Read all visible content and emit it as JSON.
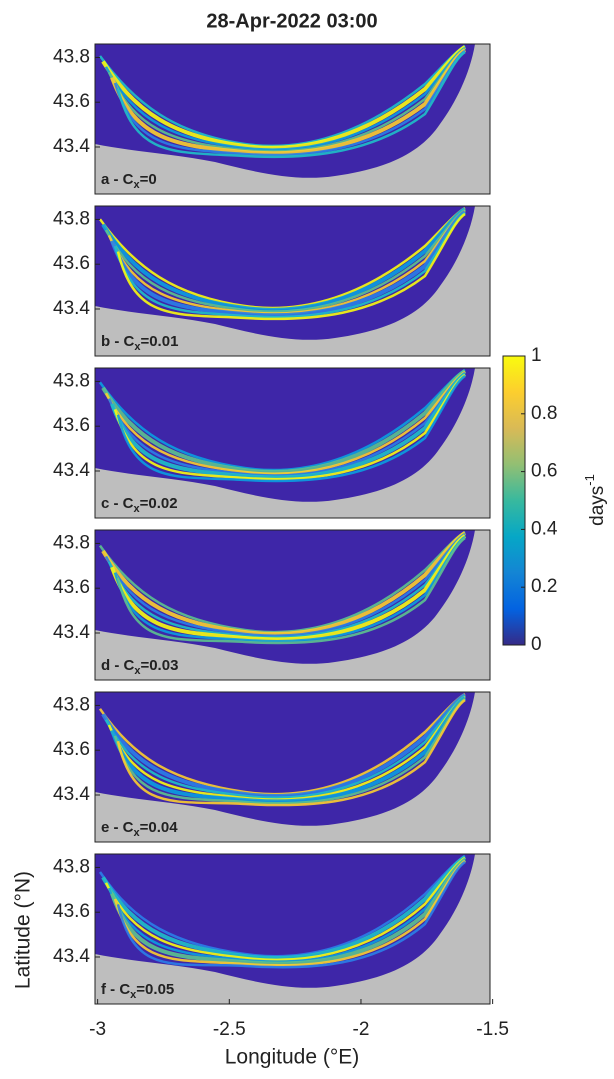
{
  "chart_data": {
    "type": "map-panels",
    "title": "28-Apr-2022 03:00",
    "x_label": "Longitude (°E)",
    "y_label": "Latitude (°N)",
    "xlim": [
      -3.01,
      -1.51
    ],
    "xticks": [
      -3,
      -2.5,
      -2,
      -1.5
    ],
    "ylim": [
      43.19,
      43.86
    ],
    "yticks": [
      43.4,
      43.6,
      43.8
    ],
    "panels": [
      {
        "label": "a - C",
        "sub": "x",
        "suffix": "=0"
      },
      {
        "label": "b - C",
        "sub": "x",
        "suffix": "=0.01"
      },
      {
        "label": "c - C",
        "sub": "x",
        "suffix": "=0.02"
      },
      {
        "label": "d - C",
        "sub": "x",
        "suffix": "=0.03"
      },
      {
        "label": "e - C",
        "sub": "x",
        "suffix": "=0.04"
      },
      {
        "label": "f - C",
        "sub": "x",
        "suffix": "=0.05"
      }
    ],
    "colorbar": {
      "label": "days",
      "label_sup": "-1",
      "lim": [
        0,
        1
      ],
      "ticks": [
        0,
        0.2,
        0.4,
        0.6,
        0.8,
        1
      ],
      "colors": [
        "#352a87",
        "#0363e1",
        "#1485d4",
        "#06a7c6",
        "#38b99e",
        "#92bf73",
        "#d9ba56",
        "#fcce2e",
        "#f9fb0e"
      ]
    },
    "land_color": "#bebebe",
    "sea_color": "#3e26a8"
  }
}
